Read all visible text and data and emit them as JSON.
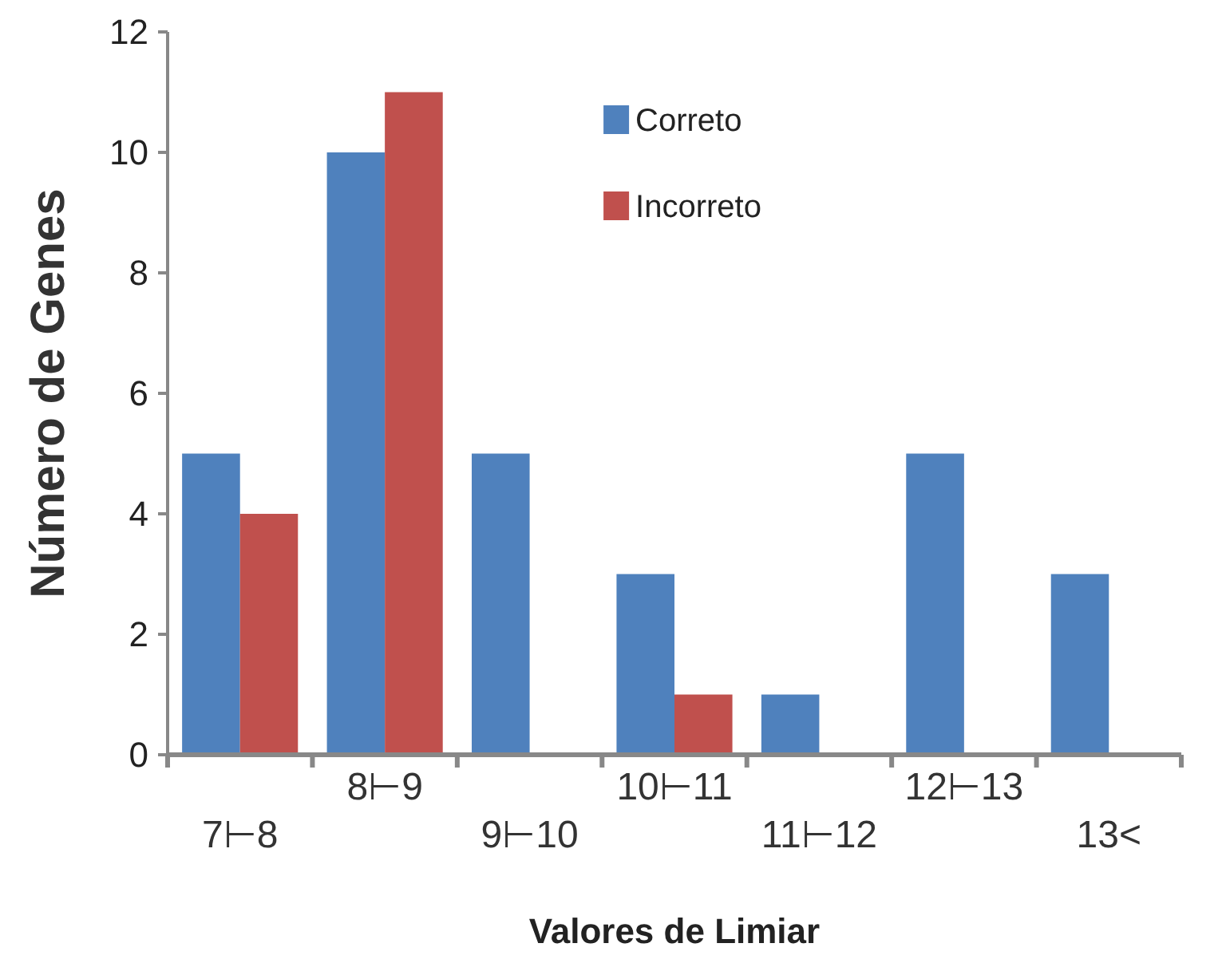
{
  "chart_data": {
    "type": "bar",
    "xlabel": "Valores de Limiar",
    "ylabel": "Número de Genes",
    "categories": [
      "7⊢8",
      "8⊢9",
      "9⊢10",
      "10⊢11",
      "11⊢12",
      "12⊢13",
      "13<"
    ],
    "series": [
      {
        "name": "Correto",
        "color": "#4f81bd",
        "values": [
          5,
          10,
          5,
          3,
          1,
          5,
          3
        ]
      },
      {
        "name": "Incorreto",
        "color": "#c0504d",
        "values": [
          4,
          11,
          0,
          1,
          0,
          0,
          0
        ]
      }
    ],
    "ylim": [
      0,
      12
    ],
    "yticks": [
      0,
      2,
      4,
      6,
      8,
      10,
      12
    ],
    "grid": false,
    "legend": "top"
  }
}
